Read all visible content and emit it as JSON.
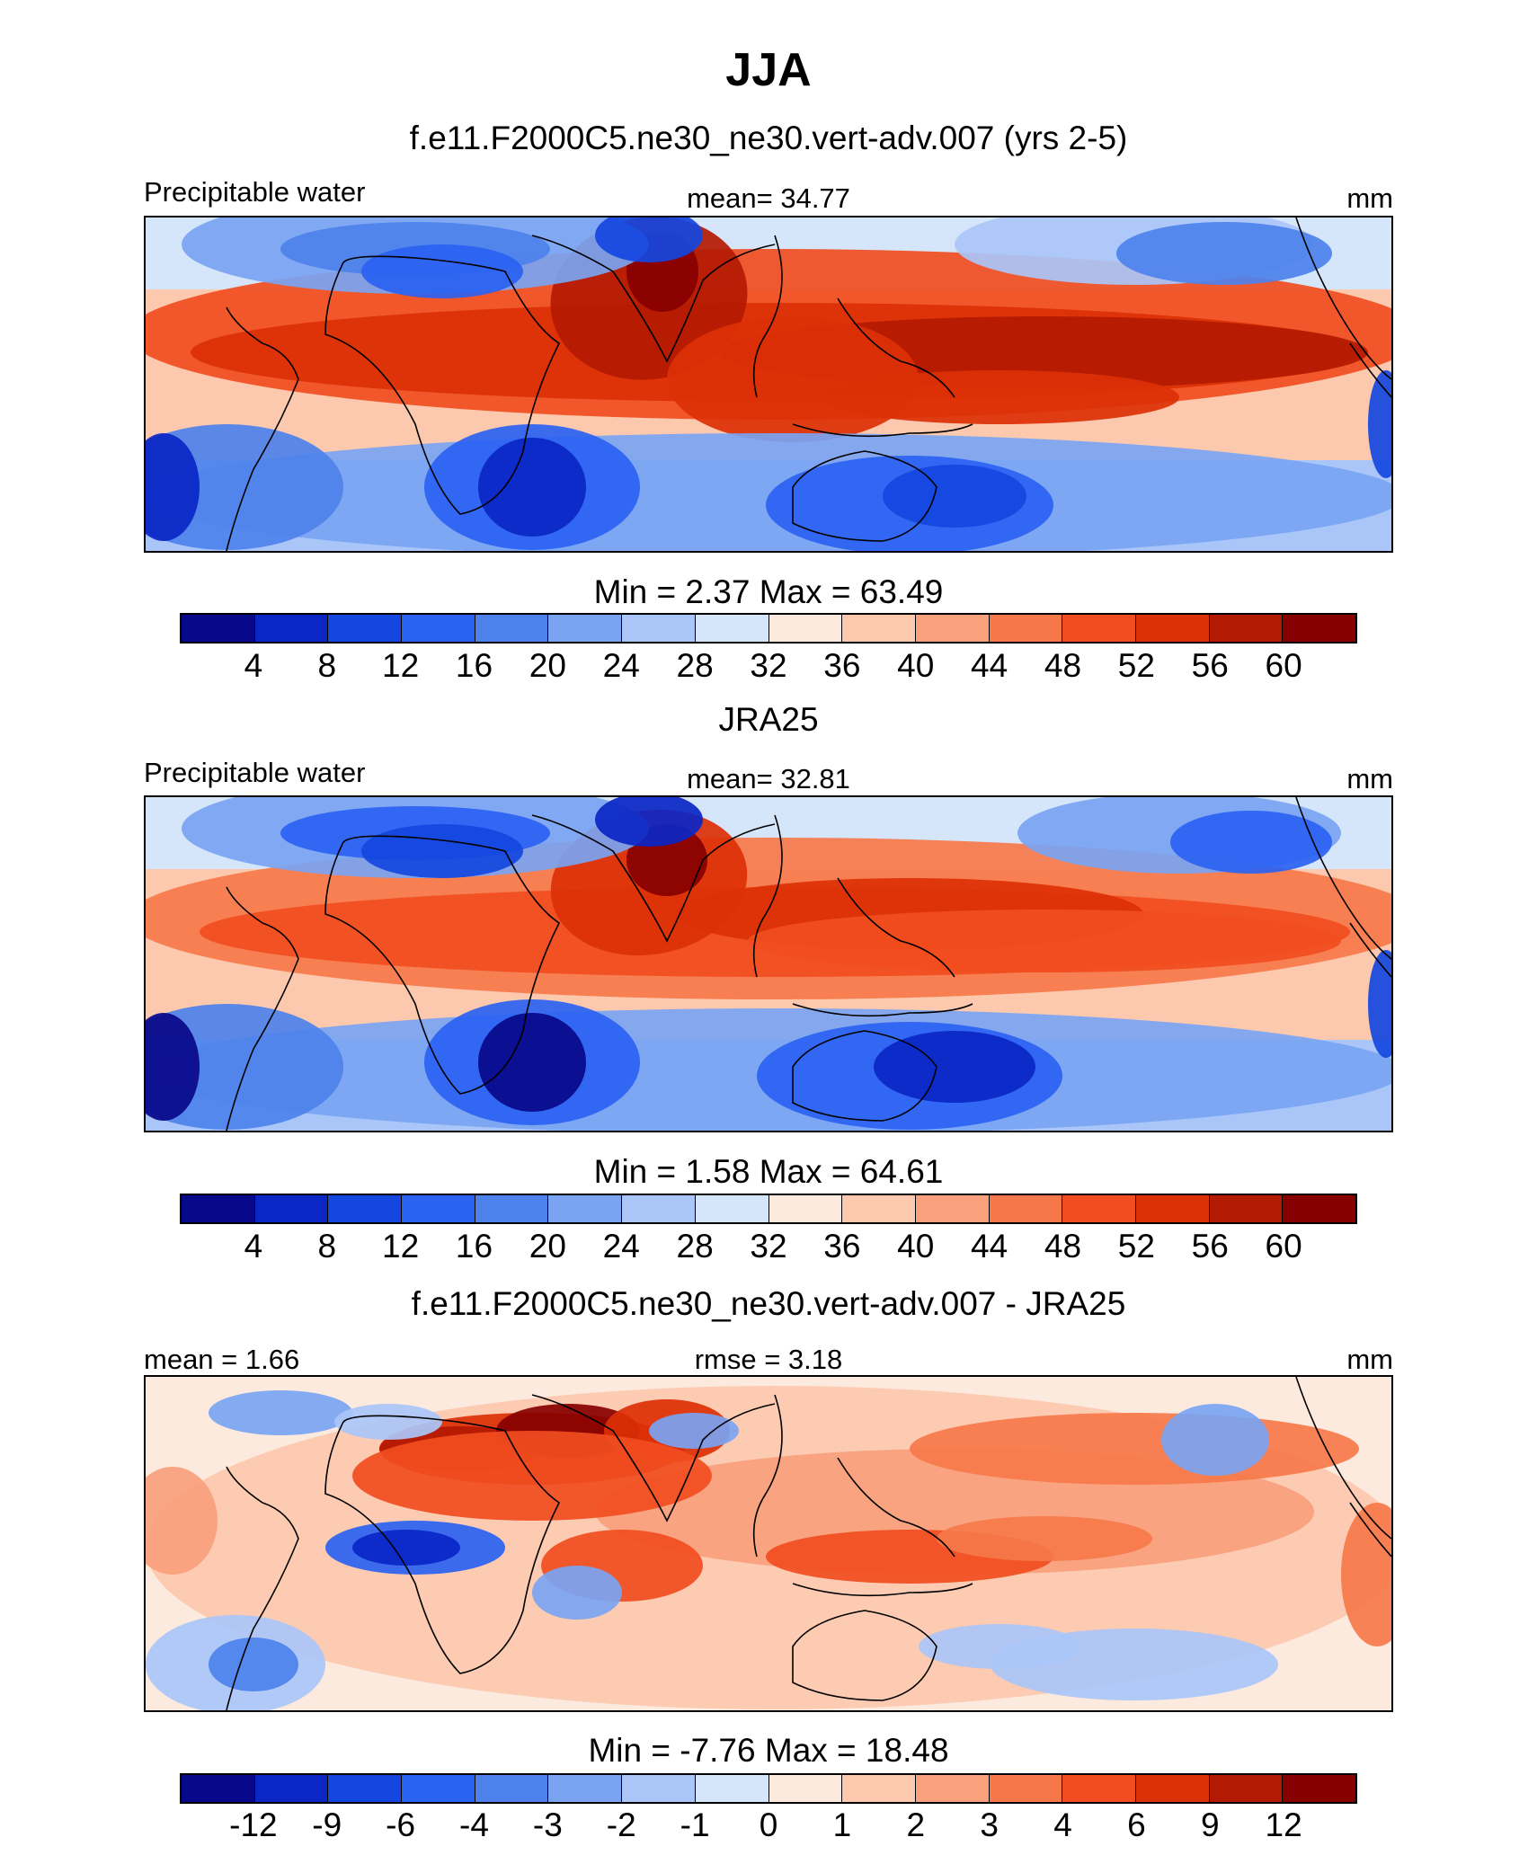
{
  "title": "JJA",
  "colors": [
    "#08088a",
    "#0a26c4",
    "#1446e0",
    "#2a62f2",
    "#4d82ec",
    "#7aa4f2",
    "#aac6f8",
    "#d6e6fa",
    "#fdeade",
    "#fcc8ae",
    "#f9a07c",
    "#f6784a",
    "#f14d20",
    "#dc3006",
    "#b31a02",
    "#870000"
  ],
  "panels": [
    {
      "title": "f.e11.F2000C5.ne30_ne30.vert-adv.007 (yrs 2-5)",
      "left_label": "Precipitable water",
      "center_label": "mean=  34.77",
      "right_label": "mm",
      "minmax": "Min =   2.37 Max =  63.49",
      "ticks": [
        "4",
        "8",
        "12",
        "16",
        "20",
        "24",
        "28",
        "32",
        "36",
        "40",
        "44",
        "48",
        "52",
        "56",
        "60"
      ]
    },
    {
      "title": "JRA25",
      "left_label": "Precipitable water",
      "center_label": "mean=  32.81",
      "right_label": "mm",
      "minmax": "Min =   1.58 Max =  64.61",
      "ticks": [
        "4",
        "8",
        "12",
        "16",
        "20",
        "24",
        "28",
        "32",
        "36",
        "40",
        "44",
        "48",
        "52",
        "56",
        "60"
      ]
    },
    {
      "title": "f.e11.F2000C5.ne30_ne30.vert-adv.007 - JRA25",
      "left_label": "mean =   1.66",
      "center_label": "rmse =   3.18",
      "right_label": "mm",
      "minmax": "Min =  -7.76 Max =  18.48",
      "ticks": [
        "-12",
        "-9",
        "-6",
        "-4",
        "-3",
        "-2",
        "-1",
        "0",
        "1",
        "2",
        "3",
        "4",
        "6",
        "9",
        "12"
      ]
    }
  ],
  "chart_data": [
    {
      "type": "heatmap",
      "title": "f.e11.F2000C5.ne30_ne30.vert-adv.007 (yrs 2-5)",
      "variable": "Precipitable water",
      "units": "mm",
      "mean": 34.77,
      "min": 2.37,
      "max": 63.49,
      "contour_levels": [
        4,
        8,
        12,
        16,
        20,
        24,
        28,
        32,
        36,
        40,
        44,
        48,
        52,
        56,
        60
      ]
    },
    {
      "type": "heatmap",
      "title": "JRA25",
      "variable": "Precipitable water",
      "units": "mm",
      "mean": 32.81,
      "min": 1.58,
      "max": 64.61,
      "contour_levels": [
        4,
        8,
        12,
        16,
        20,
        24,
        28,
        32,
        36,
        40,
        44,
        48,
        52,
        56,
        60
      ]
    },
    {
      "type": "heatmap",
      "title": "f.e11.F2000C5.ne30_ne30.vert-adv.007 - JRA25",
      "units": "mm",
      "mean": 1.66,
      "rmse": 3.18,
      "min": -7.76,
      "max": 18.48,
      "contour_levels": [
        -12,
        -9,
        -6,
        -4,
        -3,
        -2,
        -1,
        0,
        1,
        2,
        3,
        4,
        6,
        9,
        12
      ]
    }
  ]
}
